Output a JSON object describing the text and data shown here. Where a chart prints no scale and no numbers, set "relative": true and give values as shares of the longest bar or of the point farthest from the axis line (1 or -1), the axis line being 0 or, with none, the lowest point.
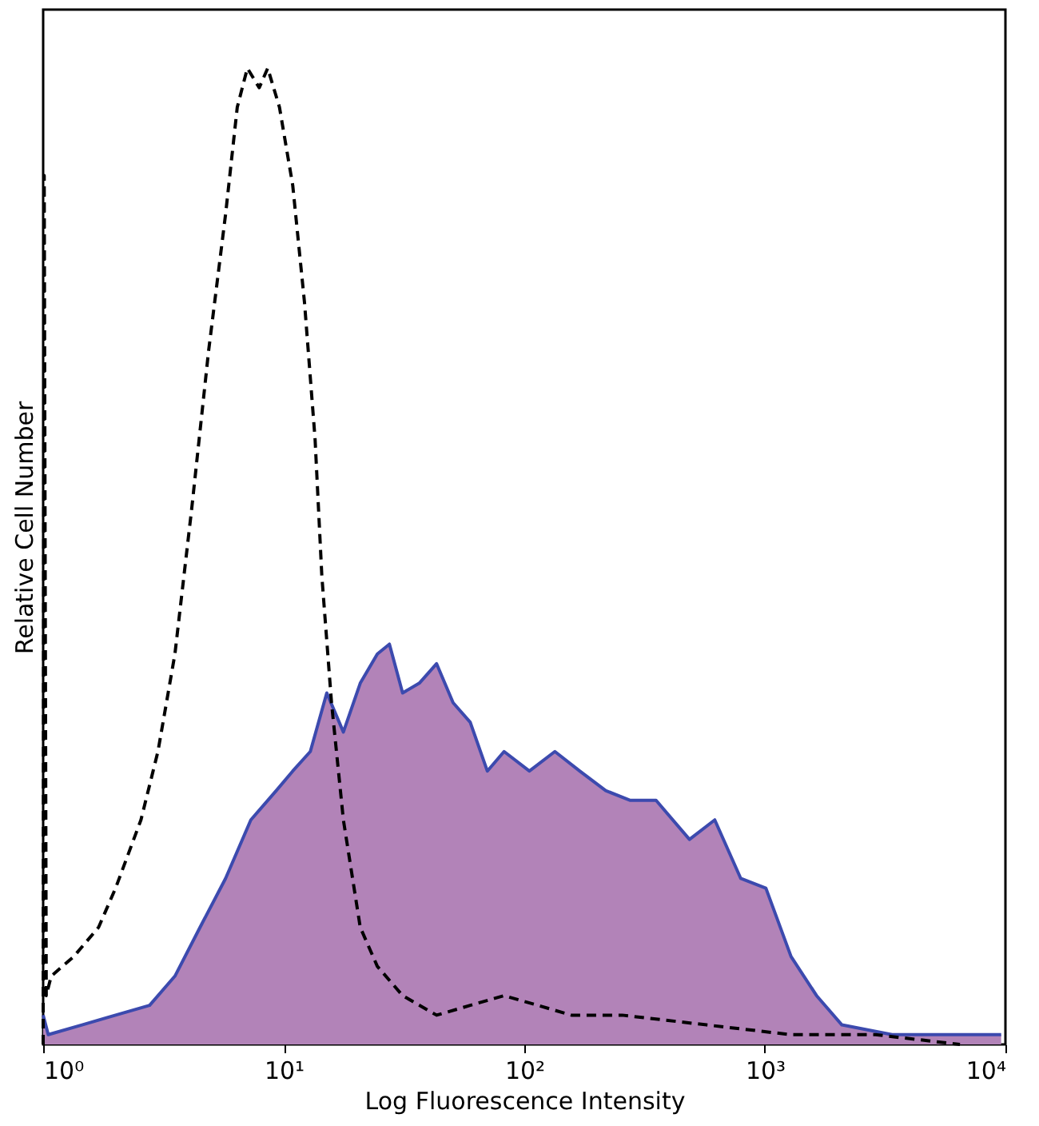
{
  "chart_data": {
    "type": "area",
    "relative": true,
    "xlabel": "Log Fluorescence Intensity",
    "ylabel": "Relative Cell Number",
    "log": "x",
    "xlim": [
      1,
      10000
    ],
    "xticks": [
      {
        "value": 1,
        "label": "10⁰"
      },
      {
        "value": 10,
        "label": "10¹"
      },
      {
        "value": 100,
        "label": "10²"
      },
      {
        "value": 1000,
        "label": "10³"
      },
      {
        "value": 10000,
        "label": "10⁴"
      }
    ],
    "grid": false,
    "series": [
      {
        "color": "#b283b8",
        "x": [
          1.0,
          1.05,
          1.45,
          2.0,
          2.77,
          3.53,
          4.49,
          5.73,
          7.3,
          9.31,
          10.9,
          12.9,
          15.1,
          17.7,
          20.8,
          24.5,
          27.5,
          31.2,
          36.6,
          43.2,
          50.6,
          59.6,
          70.2,
          82.4,
          105,
          134,
          170,
          218,
          276,
          353,
          486,
          619,
          794,
          1010,
          1285,
          1640,
          2090,
          3380,
          6470,
          9600
        ],
        "values": [
          0.03,
          0.01,
          0.02,
          0.03,
          0.04,
          0.07,
          0.12,
          0.17,
          0.23,
          0.26,
          0.28,
          0.3,
          0.36,
          0.32,
          0.37,
          0.4,
          0.41,
          0.36,
          0.37,
          0.39,
          0.35,
          0.33,
          0.28,
          0.3,
          0.28,
          0.3,
          0.28,
          0.26,
          0.25,
          0.25,
          0.21,
          0.23,
          0.17,
          0.16,
          0.09,
          0.05,
          0.02,
          0.01,
          0.01,
          0.01
        ]
      },
      {
        "type": "line",
        "color": "#000000",
        "line_style": "dashed",
        "x": [
          1.0,
          1.01,
          1.03,
          1.08,
          1.34,
          1.7,
          2.0,
          2.55,
          3.0,
          3.53,
          4.15,
          4.87,
          5.73,
          6.41,
          7.06,
          7.91,
          8.58,
          9.6,
          10.9,
          12.2,
          13.5,
          14.4,
          15.8,
          17.7,
          20.8,
          24.5,
          31.2,
          43.2,
          59.6,
          82.4,
          114,
          157,
          255,
          573,
          1285,
          2880,
          6470
        ],
        "values": [
          0.0,
          0.89,
          0.05,
          0.07,
          0.09,
          0.12,
          0.16,
          0.23,
          0.3,
          0.4,
          0.55,
          0.71,
          0.85,
          0.96,
          1.0,
          0.98,
          1.0,
          0.96,
          0.88,
          0.76,
          0.62,
          0.48,
          0.35,
          0.23,
          0.12,
          0.08,
          0.05,
          0.03,
          0.04,
          0.05,
          0.04,
          0.03,
          0.03,
          0.02,
          0.01,
          0.01,
          0.0
        ]
      }
    ]
  }
}
